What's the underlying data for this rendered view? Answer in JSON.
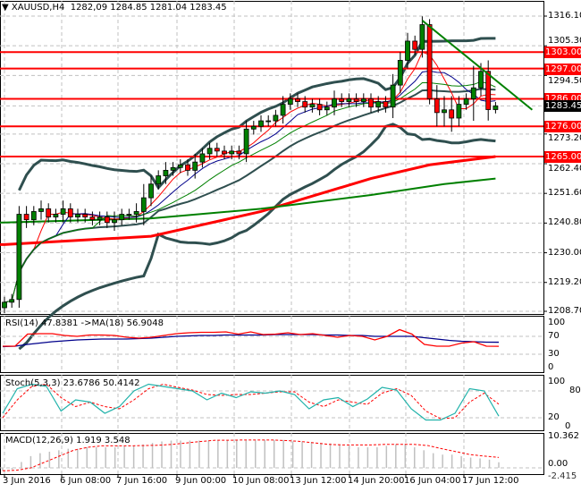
{
  "header": {
    "symbol": "XAUUSD,H4",
    "ohlc": "1282,09 1284.85 1281.04 1283.45"
  },
  "colors": {
    "bull": "#008000",
    "bear": "#ff0000",
    "level": "#ff0000",
    "band": "#2f4f4f",
    "trend": "#008000",
    "rsi": "#ff0000",
    "rsi_ma": "#00008b",
    "stoch_main": "#20b2aa",
    "stoch_signal": "#ff0000",
    "macd_hist": "#c0c0c0",
    "macd_signal": "#ff0000"
  },
  "chart_data": [
    {
      "type": "candlestick",
      "title": "XAUUSD,H4",
      "ylim": [
        1208.7,
        1316.1
      ],
      "yticks": [
        "1316.10",
        "1305.30",
        "1294.50",
        "1283.45",
        "1273.20",
        "1262.40",
        "1251.60",
        "1240.80",
        "1230.00",
        "1219.20",
        "1208.70"
      ],
      "ytick_values": [
        1316.1,
        1305.3,
        1294.5,
        1283.45,
        1273.2,
        1262.4,
        1251.6,
        1240.8,
        1230.0,
        1219.2,
        1208.7
      ],
      "first_open": 1210,
      "close": [
        1212,
        1213,
        1244,
        1242,
        1245,
        1246,
        1243,
        1244,
        1246,
        1243,
        1244,
        1243,
        1242,
        1243,
        1241,
        1242,
        1244,
        1244,
        1245,
        1250,
        1255,
        1258,
        1260,
        1261,
        1262,
        1260,
        1263,
        1266,
        1268,
        1267,
        1266,
        1267,
        1266,
        1275,
        1276,
        1278,
        1278,
        1280,
        1284,
        1286,
        1285,
        1283,
        1284,
        1282,
        1283,
        1286,
        1285,
        1286,
        1285,
        1286,
        1283,
        1285,
        1283,
        1291,
        1300,
        1307,
        1304,
        1313,
        1286,
        1281,
        1282,
        1279,
        1284,
        1286,
        1290,
        1296,
        1282.09,
        1283.45
      ],
      "wick": [
        2,
        2,
        3,
        3,
        2,
        3,
        2,
        2,
        3,
        2,
        2,
        2,
        2,
        2,
        2,
        3,
        2,
        2,
        3,
        5,
        3,
        2,
        3,
        2,
        2,
        2,
        3,
        2,
        2,
        2,
        2,
        2,
        2,
        3,
        2,
        2,
        2,
        2,
        3,
        2,
        2,
        2,
        2,
        2,
        2,
        3,
        2,
        2,
        2,
        2,
        2,
        2,
        2,
        4,
        3,
        3,
        2,
        3,
        2,
        5,
        5,
        5,
        3,
        2,
        8,
        3,
        4,
        1.4
      ],
      "current_price": "1283.45",
      "levels": [
        {
          "value": 1303,
          "label": "1303.00"
        },
        {
          "value": 1297,
          "label": "1297.00"
        },
        {
          "value": 1286,
          "label": "1286.00"
        },
        {
          "value": 1276,
          "label": "1276.00"
        },
        {
          "value": 1265,
          "label": "1265.00"
        }
      ],
      "trendline": [
        [
          57,
          1314.5
        ],
        [
          72,
          1282
        ]
      ],
      "ma_red_long": [
        [
          0,
          1233
        ],
        [
          20,
          1236
        ],
        [
          35,
          1245
        ],
        [
          50,
          1257
        ],
        [
          58,
          1262
        ],
        [
          67,
          1265
        ]
      ],
      "ma_green_long": [
        [
          0,
          1241
        ],
        [
          20,
          1242.5
        ],
        [
          35,
          1246
        ],
        [
          50,
          1251
        ],
        [
          60,
          1255
        ],
        [
          67,
          1257
        ]
      ],
      "xticks": [
        "3 Jun 2016",
        "6 Jun 08:00",
        "7 Jun 16:00",
        "9 Jun 00:00",
        "10 Jun 08:00",
        "13 Jun 12:00",
        "14 Jun 20:00",
        "16 Jun 04:00",
        "17 Jun 12:00"
      ]
    },
    {
      "type": "line",
      "title": "RSI(14) 47.8381  ->MA(18) 56.9048",
      "ylim": [
        0,
        100
      ],
      "yticks": [
        "100",
        "70",
        "30",
        "0"
      ],
      "rsi": [
        48,
        48,
        75,
        76,
        76,
        72,
        70,
        73,
        73,
        72,
        68,
        66,
        68,
        72,
        76,
        78,
        79,
        79,
        80,
        75,
        80,
        74,
        75,
        78,
        74,
        76,
        72,
        68,
        72,
        70,
        62,
        70,
        85,
        75,
        52,
        48,
        48,
        55,
        58,
        48,
        47.8
      ],
      "ma": [
        47,
        48,
        52,
        55,
        58,
        60,
        62,
        63,
        64,
        64,
        64,
        65,
        66,
        68,
        70,
        71,
        72,
        72,
        73,
        73,
        73,
        73,
        74,
        74,
        74,
        74,
        73,
        73,
        72,
        72,
        70,
        70,
        70,
        70,
        67,
        64,
        61,
        59,
        58,
        57,
        56.9
      ]
    },
    {
      "type": "line",
      "title": "Stoch(5,3,3) 23.6786 50.4142",
      "ylim": [
        0,
        100
      ],
      "yticks": [
        "100",
        "80",
        "20",
        "0"
      ],
      "main": [
        30,
        85,
        95,
        90,
        35,
        60,
        55,
        30,
        45,
        80,
        95,
        90,
        85,
        80,
        60,
        75,
        65,
        78,
        75,
        80,
        72,
        40,
        60,
        65,
        45,
        62,
        88,
        82,
        40,
        15,
        15,
        30,
        85,
        80,
        23.7
      ],
      "signal": [
        20,
        60,
        90,
        95,
        65,
        45,
        55,
        45,
        40,
        60,
        85,
        95,
        88,
        82,
        72,
        70,
        72,
        72,
        75,
        78,
        78,
        55,
        45,
        60,
        55,
        50,
        75,
        85,
        70,
        35,
        18,
        20,
        55,
        75,
        50.4
      ]
    },
    {
      "type": "bar+line",
      "title": "MACD(12,26,9) 1.919 3.548",
      "ylim": [
        -2.415,
        10.362
      ],
      "yticks": [
        "10.362",
        "0.00",
        "-2.415"
      ],
      "hist": [
        -1,
        -0.5,
        2,
        4,
        5,
        5.5,
        6,
        6.5,
        6.5,
        7,
        7,
        7,
        7,
        7.3,
        7.5,
        8,
        8.5,
        9,
        9.3,
        9.3,
        9.3,
        9.3,
        9.3,
        9.3,
        9.3,
        9.3,
        9.3,
        9.3,
        9.5,
        9.5,
        9.5,
        9,
        9,
        8.8,
        8.5,
        8.3,
        8,
        7.5,
        7,
        7,
        7,
        7.5,
        8,
        8.2,
        7,
        6,
        5,
        4.5,
        4.5,
        4,
        3.5,
        3.2,
        2.8,
        1.9
      ],
      "signal": [
        -1,
        -0.8,
        0,
        2,
        4,
        6,
        7,
        7.5,
        7.5,
        7.5,
        7.6,
        7.7,
        8,
        8.5,
        9,
        9.4,
        9.4,
        9.5,
        9.5,
        9.5,
        9.3,
        9.0,
        8.5,
        8,
        7.8,
        7.8,
        7.8,
        8,
        8,
        8,
        7.6,
        6.5,
        5.5,
        4.5,
        4,
        3.548
      ]
    }
  ]
}
